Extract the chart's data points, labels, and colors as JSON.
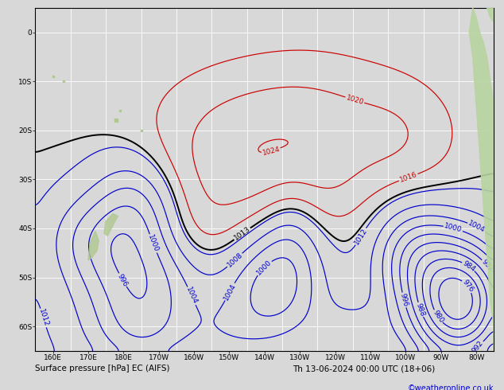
{
  "title_left": "Surface pressure [hPa] EC (AIFS)",
  "title_right": "Th 13-06-2024 00:00 UTC (18+06)",
  "copyright": "©weatheronline.co.uk",
  "background_color": "#d8d8d8",
  "lon_min": 155,
  "lon_max": 285,
  "lat_min": -65,
  "lat_max": 5,
  "blue_max": 1012,
  "black_min": 1013,
  "black_max": 1013,
  "red_min": 1016
}
